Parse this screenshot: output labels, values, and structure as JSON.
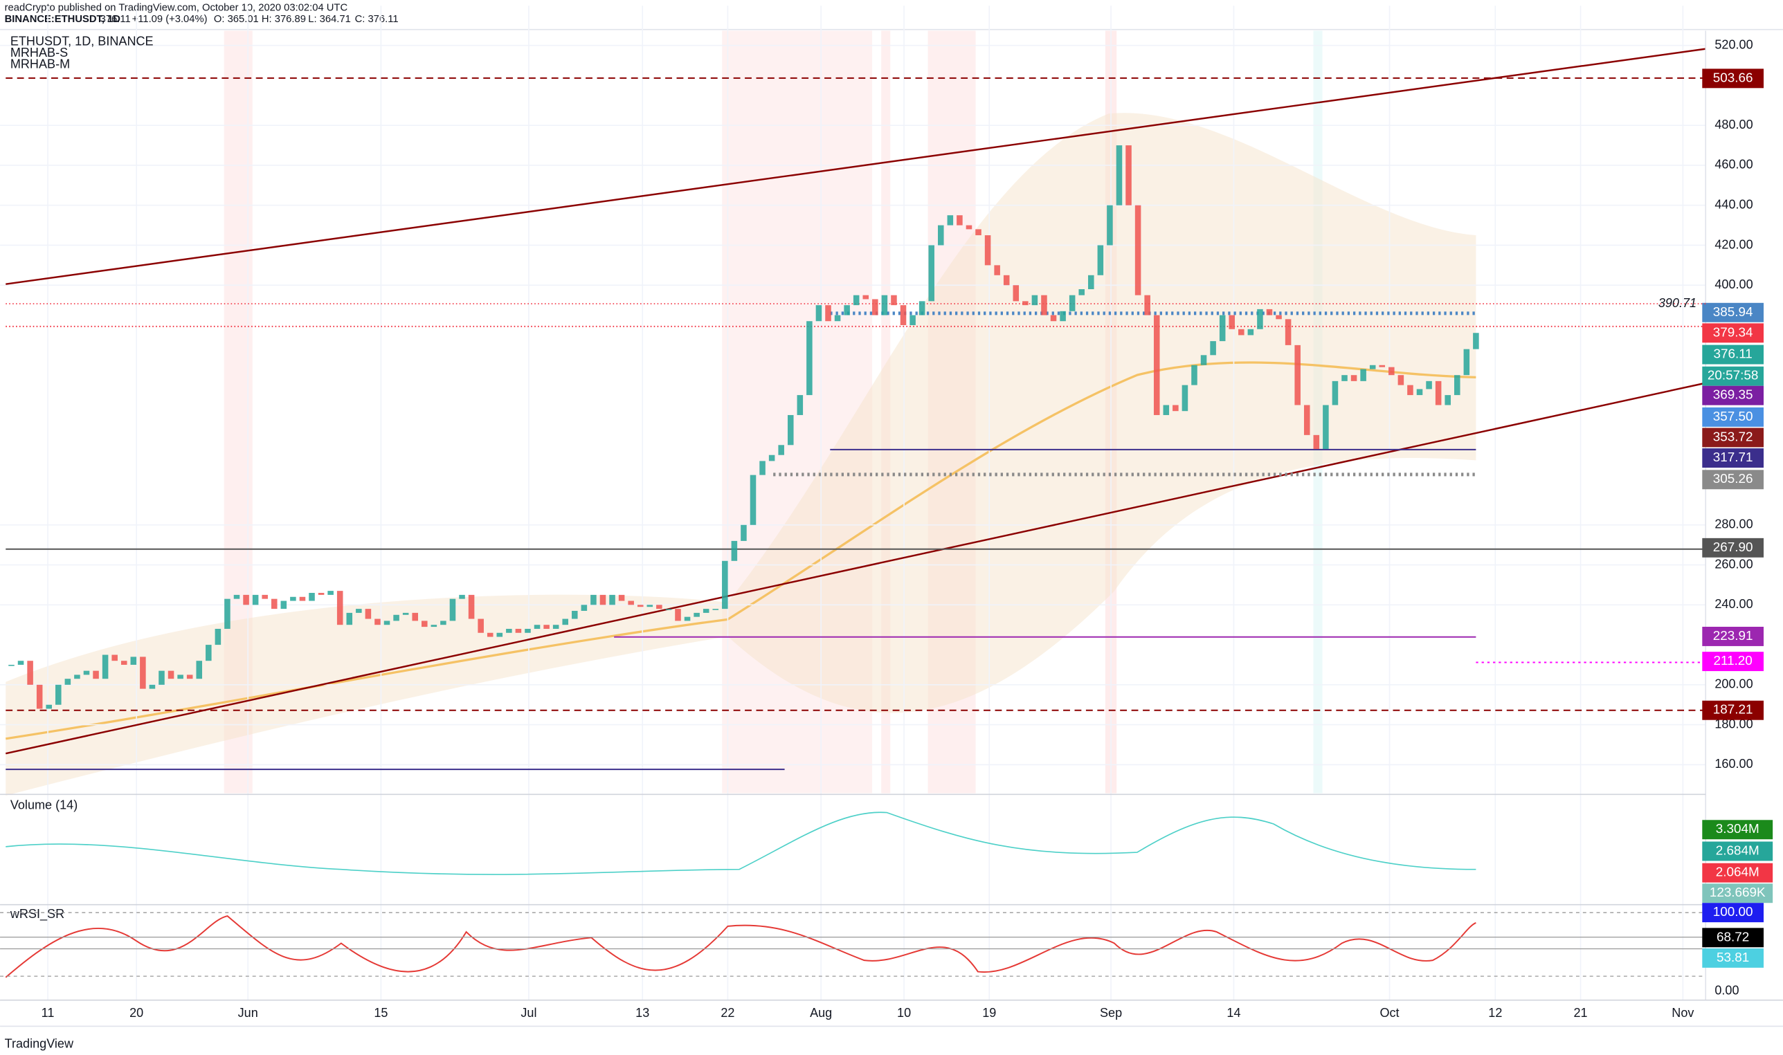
{
  "header": {
    "publisher": "readCrypto published on TradingView.com, October 10, 2020 03:02:04 UTC",
    "symbol": "BINANCE:ETHUSDT, 1D",
    "last": "376.11",
    "change": "+11.09 (+3.04%)",
    "open": "O: 365.01",
    "high": "H: 376.89",
    "low": "L: 364.71",
    "close": "C: 376.11"
  },
  "legend": [
    "ETHUSDT, 1D, BINANCE",
    "MRHAB-S",
    "MRHAB-M"
  ],
  "chart_data": {
    "type": "candlestick",
    "values": [
      210,
      212,
      200,
      188,
      190,
      200,
      203,
      205,
      207,
      203,
      215,
      212,
      210,
      214,
      198,
      200,
      207,
      203,
      205,
      203,
      212,
      220,
      228,
      243,
      245,
      240,
      245,
      243,
      238,
      242,
      244,
      242,
      246,
      245,
      247,
      230,
      236,
      238,
      233,
      230,
      232,
      235,
      236,
      232,
      229,
      230,
      232,
      243,
      245,
      233,
      226,
      224,
      226,
      228,
      226,
      228,
      230,
      228,
      230,
      233,
      237,
      240,
      245,
      240,
      245,
      242,
      240,
      239,
      240,
      238,
      238,
      232,
      234,
      236,
      238,
      238,
      262,
      272,
      280,
      305,
      312,
      315,
      320,
      335,
      345,
      382,
      390,
      382,
      385,
      390,
      395,
      393,
      385,
      395,
      390,
      380,
      385,
      392,
      420,
      430,
      435,
      430,
      428,
      425,
      410,
      405,
      400,
      392,
      390,
      395,
      385,
      382,
      387,
      395,
      398,
      405,
      420,
      440,
      470,
      440,
      395,
      385,
      335,
      340,
      337,
      350,
      360,
      365,
      372,
      385,
      378,
      375,
      378,
      388,
      385,
      383,
      370,
      340,
      325,
      318,
      340,
      352,
      355,
      352,
      358,
      360,
      359,
      355,
      350,
      345,
      348,
      352,
      340,
      345,
      355,
      368,
      376.11
    ],
    "up_color": "#26a69a",
    "down_color": "#ef5350",
    "ylim": [
      145.7,
      539.9
    ],
    "yticks": [
      {
        "value": 520,
        "label": "520.00"
      },
      {
        "value": 480,
        "label": "480.00"
      },
      {
        "value": 460,
        "label": "460.00"
      },
      {
        "value": 440,
        "label": "440.00"
      },
      {
        "value": 420,
        "label": "420.00"
      },
      {
        "value": 400,
        "label": "400.00"
      },
      {
        "value": 280,
        "label": "280.00"
      },
      {
        "value": 260,
        "label": "260.00"
      },
      {
        "value": 240,
        "label": "240.00"
      },
      {
        "value": 200,
        "label": "200.00"
      },
      {
        "value": 180,
        "label": "180.00"
      },
      {
        "value": 160,
        "label": "160.00"
      }
    ],
    "grid": true,
    "xticks": [
      "11",
      "20",
      "Jun",
      "15",
      "Jul",
      "13",
      "22",
      "Aug",
      "10",
      "19",
      "Sep",
      "14",
      "Oct",
      "12",
      "21",
      "Nov"
    ],
    "annotation": "390.71",
    "price_tags": [
      {
        "value": 503.66,
        "label": "503.66",
        "color": "#8b0000"
      },
      {
        "value": 385.94,
        "label": "385.94",
        "color": "#4a86c5"
      },
      {
        "value": 379.34,
        "label": "379.34",
        "color": "#f23645"
      },
      {
        "value": 376.11,
        "label": "376.11",
        "color": "#26a69a"
      },
      {
        "label": "20:57:58",
        "color": "#26a69a"
      },
      {
        "value": 369.35,
        "label": "369.35",
        "color": "#7b1fa2"
      },
      {
        "value": 357.5,
        "label": "357.50",
        "color": "#4a90e2"
      },
      {
        "value": 353.72,
        "label": "353.72",
        "color": "#8b1a1a"
      },
      {
        "value": 317.71,
        "label": "317.71",
        "color": "#3b2e8c"
      },
      {
        "value": 305.26,
        "label": "305.26",
        "color": "#8a8a8a"
      },
      {
        "value": 267.9,
        "label": "267.90",
        "color": "#555555"
      },
      {
        "value": 223.91,
        "label": "223.91",
        "color": "#9c27b0"
      },
      {
        "value": 211.2,
        "label": "211.20",
        "color": "#ff00ff"
      },
      {
        "value": 187.21,
        "label": "187.21",
        "color": "#8b0000"
      }
    ]
  },
  "volume_pane": {
    "title": "Volume (14)",
    "tags": [
      {
        "label": "3.304M",
        "color": "#1b8a1b"
      },
      {
        "label": "2.684M",
        "color": "#26a69a"
      },
      {
        "label": "2.064M",
        "color": "#f23645"
      },
      {
        "label": "123.669K",
        "color": "#7fc4bb"
      }
    ]
  },
  "rsi_pane": {
    "title": "wRSI_SR",
    "tags": [
      {
        "value": 100,
        "label": "100.00",
        "color": "#1e1ef0"
      },
      {
        "value": 68.72,
        "label": "68.72",
        "color": "#000000"
      },
      {
        "value": 53.81,
        "label": "53.81",
        "color": "#4dd0e1"
      }
    ],
    "zero": {
      "value": 0,
      "label": "0.00"
    }
  },
  "footer": "TradingView"
}
